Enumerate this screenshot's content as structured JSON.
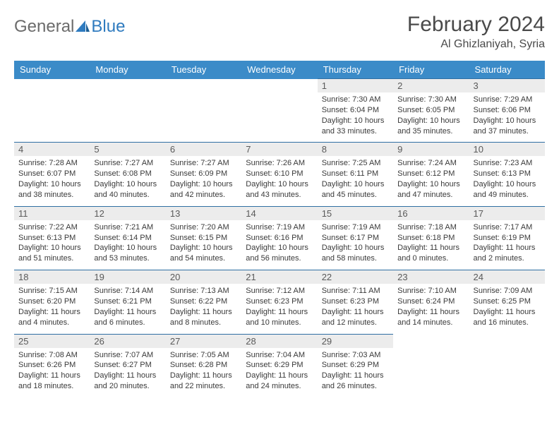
{
  "brand": {
    "part1": "General",
    "part2": "Blue"
  },
  "title": "February 2024",
  "location": "Al Ghizlaniyah, Syria",
  "colors": {
    "header_bg": "#3b8bc8",
    "header_fg": "#ffffff",
    "row_border": "#2f6fa3",
    "daynum_bg": "#ececec",
    "text": "#3a3a3a",
    "brand_gray": "#6b6b6b",
    "brand_blue": "#2f7bbf"
  },
  "weekdays": [
    "Sunday",
    "Monday",
    "Tuesday",
    "Wednesday",
    "Thursday",
    "Friday",
    "Saturday"
  ],
  "weeks": [
    [
      null,
      null,
      null,
      null,
      {
        "d": "1",
        "sr": "7:30 AM",
        "ss": "6:04 PM",
        "dl": "10 hours and 33 minutes."
      },
      {
        "d": "2",
        "sr": "7:30 AM",
        "ss": "6:05 PM",
        "dl": "10 hours and 35 minutes."
      },
      {
        "d": "3",
        "sr": "7:29 AM",
        "ss": "6:06 PM",
        "dl": "10 hours and 37 minutes."
      }
    ],
    [
      {
        "d": "4",
        "sr": "7:28 AM",
        "ss": "6:07 PM",
        "dl": "10 hours and 38 minutes."
      },
      {
        "d": "5",
        "sr": "7:27 AM",
        "ss": "6:08 PM",
        "dl": "10 hours and 40 minutes."
      },
      {
        "d": "6",
        "sr": "7:27 AM",
        "ss": "6:09 PM",
        "dl": "10 hours and 42 minutes."
      },
      {
        "d": "7",
        "sr": "7:26 AM",
        "ss": "6:10 PM",
        "dl": "10 hours and 43 minutes."
      },
      {
        "d": "8",
        "sr": "7:25 AM",
        "ss": "6:11 PM",
        "dl": "10 hours and 45 minutes."
      },
      {
        "d": "9",
        "sr": "7:24 AM",
        "ss": "6:12 PM",
        "dl": "10 hours and 47 minutes."
      },
      {
        "d": "10",
        "sr": "7:23 AM",
        "ss": "6:13 PM",
        "dl": "10 hours and 49 minutes."
      }
    ],
    [
      {
        "d": "11",
        "sr": "7:22 AM",
        "ss": "6:13 PM",
        "dl": "10 hours and 51 minutes."
      },
      {
        "d": "12",
        "sr": "7:21 AM",
        "ss": "6:14 PM",
        "dl": "10 hours and 53 minutes."
      },
      {
        "d": "13",
        "sr": "7:20 AM",
        "ss": "6:15 PM",
        "dl": "10 hours and 54 minutes."
      },
      {
        "d": "14",
        "sr": "7:19 AM",
        "ss": "6:16 PM",
        "dl": "10 hours and 56 minutes."
      },
      {
        "d": "15",
        "sr": "7:19 AM",
        "ss": "6:17 PM",
        "dl": "10 hours and 58 minutes."
      },
      {
        "d": "16",
        "sr": "7:18 AM",
        "ss": "6:18 PM",
        "dl": "11 hours and 0 minutes."
      },
      {
        "d": "17",
        "sr": "7:17 AM",
        "ss": "6:19 PM",
        "dl": "11 hours and 2 minutes."
      }
    ],
    [
      {
        "d": "18",
        "sr": "7:15 AM",
        "ss": "6:20 PM",
        "dl": "11 hours and 4 minutes."
      },
      {
        "d": "19",
        "sr": "7:14 AM",
        "ss": "6:21 PM",
        "dl": "11 hours and 6 minutes."
      },
      {
        "d": "20",
        "sr": "7:13 AM",
        "ss": "6:22 PM",
        "dl": "11 hours and 8 minutes."
      },
      {
        "d": "21",
        "sr": "7:12 AM",
        "ss": "6:23 PM",
        "dl": "11 hours and 10 minutes."
      },
      {
        "d": "22",
        "sr": "7:11 AM",
        "ss": "6:23 PM",
        "dl": "11 hours and 12 minutes."
      },
      {
        "d": "23",
        "sr": "7:10 AM",
        "ss": "6:24 PM",
        "dl": "11 hours and 14 minutes."
      },
      {
        "d": "24",
        "sr": "7:09 AM",
        "ss": "6:25 PM",
        "dl": "11 hours and 16 minutes."
      }
    ],
    [
      {
        "d": "25",
        "sr": "7:08 AM",
        "ss": "6:26 PM",
        "dl": "11 hours and 18 minutes."
      },
      {
        "d": "26",
        "sr": "7:07 AM",
        "ss": "6:27 PM",
        "dl": "11 hours and 20 minutes."
      },
      {
        "d": "27",
        "sr": "7:05 AM",
        "ss": "6:28 PM",
        "dl": "11 hours and 22 minutes."
      },
      {
        "d": "28",
        "sr": "7:04 AM",
        "ss": "6:29 PM",
        "dl": "11 hours and 24 minutes."
      },
      {
        "d": "29",
        "sr": "7:03 AM",
        "ss": "6:29 PM",
        "dl": "11 hours and 26 minutes."
      },
      null,
      null
    ]
  ],
  "labels": {
    "sunrise": "Sunrise:",
    "sunset": "Sunset:",
    "daylight": "Daylight:"
  }
}
